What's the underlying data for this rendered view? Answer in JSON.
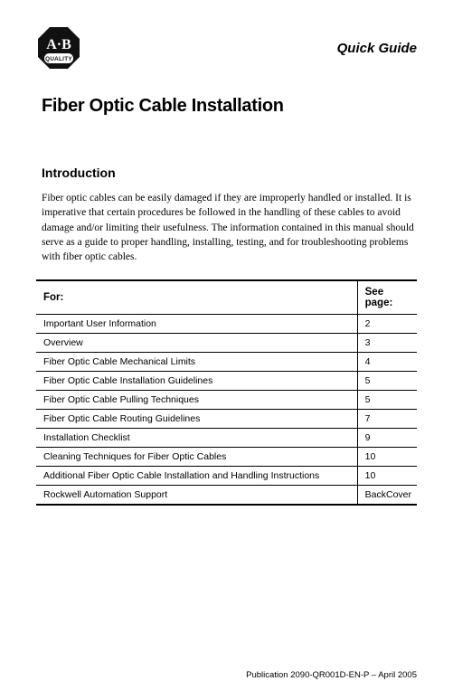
{
  "header": {
    "logo_text_top": "A·B",
    "logo_text_bottom": "QUALITY",
    "logo_fill": "#111111",
    "doc_type": "Quick Guide"
  },
  "title": "Fiber Optic Cable Installation",
  "section_heading": "Introduction",
  "intro_paragraph": "Fiber optic cables can be easily damaged if they are improperly handled or installed. It is imperative that certain procedures be followed in the handling of these cables to avoid damage and/or limiting their usefulness. The information contained in this manual should serve as a guide to proper handling, installing, testing, and for troubleshooting problems with fiber optic cables.",
  "table": {
    "columns": [
      "For:",
      "See page:"
    ],
    "rows": [
      [
        "Important User Information",
        "2"
      ],
      [
        "Overview",
        "3"
      ],
      [
        "Fiber Optic Cable Mechanical Limits",
        "4"
      ],
      [
        "Fiber Optic Cable Installation Guidelines",
        "5"
      ],
      [
        "Fiber Optic Cable Pulling Techniques",
        "5"
      ],
      [
        "Fiber Optic Cable Routing Guidelines",
        "7"
      ],
      [
        "Installation Checklist",
        "9"
      ],
      [
        "Cleaning Techniques for Fiber Optic Cables",
        "10"
      ],
      [
        "Additional Fiber Optic Cable Installation and Handling Instructions",
        "10"
      ],
      [
        "Rockwell Automation Support",
        "BackCover"
      ]
    ]
  },
  "footer": "Publication 2090-QR001D-EN-P – April 2005"
}
